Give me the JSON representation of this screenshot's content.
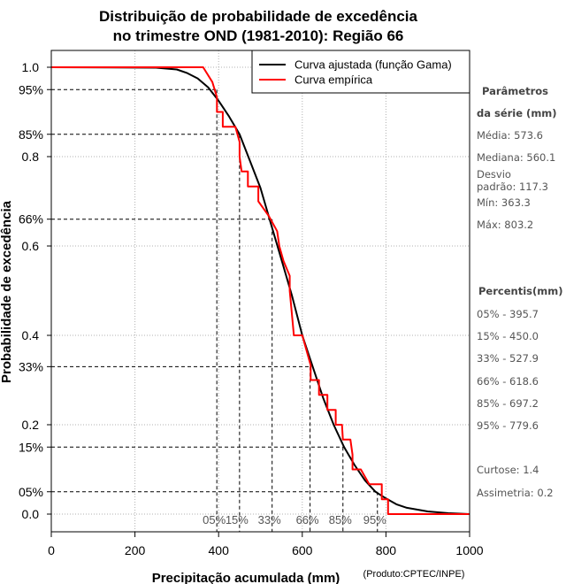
{
  "chart_data": {
    "type": "line",
    "title_line1": "Distribuição de probabilidade de excedência",
    "title_line2": "no trimestre OND (1981-2010): Região 66",
    "xlabel": "Precipitação acumulada (mm)",
    "ylabel": "Probabilidade de excedência",
    "credit": "(Produto:CPTEC/INPE)",
    "xlim": [
      0,
      1000
    ],
    "ylim": [
      0,
      1
    ],
    "x_ticks": [
      0,
      200,
      400,
      600,
      800,
      1000
    ],
    "x_tick_labels": [
      "0",
      "200",
      "400",
      "600",
      "800",
      "1000"
    ],
    "y_ticks": [
      0.0,
      0.2,
      0.4,
      0.6,
      0.8,
      1.0
    ],
    "y_tick_labels": [
      "0.0",
      "0.2",
      "0.4",
      "0.6",
      "0.8",
      "1.0"
    ],
    "y_extra_ticks": [
      0.95,
      0.85,
      0.66,
      0.33,
      0.15,
      0.05
    ],
    "y_extra_labels": [
      "95%",
      "85%",
      "66%",
      "33%",
      "15%",
      "05%"
    ],
    "legend": {
      "position": "top-right",
      "entries": [
        {
          "label": "Curva ajustada (função Gama)",
          "color": "#000000"
        },
        {
          "label": "Curva empírica",
          "color": "#ff0000"
        }
      ]
    },
    "series": [
      {
        "name": "Curva ajustada (função Gama)",
        "color": "#000000",
        "x": [
          0,
          250,
          300,
          325,
          350,
          375,
          400,
          425,
          450,
          475,
          500,
          525,
          550,
          575,
          600,
          625,
          650,
          675,
          700,
          725,
          750,
          775,
          800,
          825,
          850,
          900,
          950,
          1000
        ],
        "y": [
          1.0,
          0.999,
          0.995,
          0.987,
          0.975,
          0.955,
          0.925,
          0.89,
          0.85,
          0.79,
          0.73,
          0.65,
          0.57,
          0.49,
          0.4,
          0.33,
          0.26,
          0.2,
          0.15,
          0.11,
          0.075,
          0.05,
          0.035,
          0.022,
          0.014,
          0.006,
          0.002,
          0.0
        ]
      },
      {
        "name": "Curva empírica",
        "color": "#ff0000",
        "x": [
          0,
          363,
          385,
          396,
          396,
          410,
          410,
          436,
          440,
          450,
          450,
          455,
          470,
          470,
          495,
          495,
          520,
          540,
          545,
          555,
          570,
          570,
          580,
          595,
          600,
          610,
          620,
          620,
          630,
          640,
          640,
          650,
          660,
          660,
          670,
          680,
          680,
          695,
          697,
          715,
          720,
          720,
          740,
          740,
          760,
          760,
          790,
          790,
          805,
          805,
          1000
        ],
        "y": [
          1.0,
          1.0,
          0.967,
          0.933,
          0.9,
          0.9,
          0.867,
          0.867,
          0.867,
          0.833,
          0.8,
          0.767,
          0.767,
          0.733,
          0.733,
          0.7,
          0.667,
          0.633,
          0.6,
          0.567,
          0.533,
          0.5,
          0.4,
          0.4,
          0.4,
          0.367,
          0.333,
          0.3,
          0.3,
          0.3,
          0.267,
          0.267,
          0.267,
          0.233,
          0.233,
          0.233,
          0.2,
          0.2,
          0.167,
          0.167,
          0.133,
          0.1,
          0.1,
          0.1,
          0.067,
          0.067,
          0.067,
          0.033,
          0.033,
          0.0,
          0.0
        ]
      }
    ],
    "reference_lines": {
      "probabilities": [
        0.95,
        0.85,
        0.66,
        0.33,
        0.15,
        0.05
      ],
      "percentiles_mm": [
        395.7,
        450.0,
        527.9,
        618.6,
        697.2,
        779.6
      ],
      "percentile_labels": [
        "05%",
        "15%",
        "33%",
        "66%",
        "85%",
        "95%"
      ]
    }
  },
  "sidebar": {
    "params_title_line1": "Parâmetros",
    "params_title_line2": "da série (mm)",
    "media": "Média: 573.6",
    "mediana": "Mediana: 560.1",
    "desvio_line1": "Desvio",
    "desvio_line2": "padrão: 117.3",
    "min": "Mín: 363.3",
    "max": "Máx: 803.2",
    "percentis_title": "Percentis(mm)",
    "p05": "05% - 395.7",
    "p15": "15% - 450.0",
    "p33": "33% - 527.9",
    "p66": "66% - 618.6",
    "p85": "85% - 697.2",
    "p95": "95% - 779.6",
    "curtose": "Curtose: 1.4",
    "assimetria": "Assimetria: 0.2"
  }
}
